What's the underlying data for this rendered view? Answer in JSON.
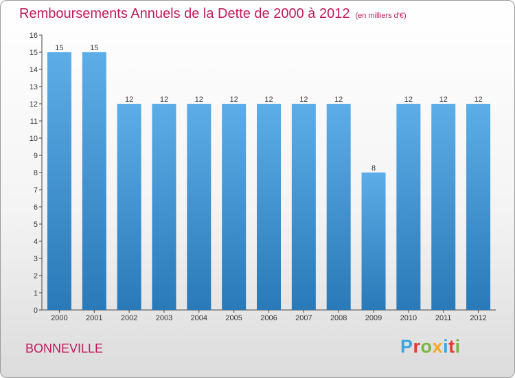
{
  "header": {
    "title": "Remboursements Annuels de la Dette de 2000 à 2012",
    "unit": "(en milliers d'€)"
  },
  "footer": {
    "city": "BONNEVILLE",
    "logo_letters": [
      "P",
      "r",
      "o",
      "x",
      "i",
      "t",
      "i"
    ]
  },
  "colors": {
    "title": "#c2185b",
    "bar_top": "#5dade8",
    "bar_bottom": "#2a79b8"
  },
  "chart_data": {
    "type": "bar",
    "title": "Remboursements Annuels de la Dette de 2000 à 2012",
    "categories": [
      "2000",
      "2001",
      "2002",
      "2003",
      "2004",
      "2005",
      "2006",
      "2007",
      "2008",
      "2009",
      "2010",
      "2011",
      "2012"
    ],
    "values": [
      15,
      15,
      12,
      12,
      12,
      12,
      12,
      12,
      12,
      8,
      12,
      12,
      12
    ],
    "ylim": [
      0,
      16
    ],
    "yticks": [
      0,
      1,
      2,
      3,
      4,
      5,
      6,
      7,
      8,
      9,
      10,
      11,
      12,
      13,
      14,
      15,
      16
    ],
    "grid": false,
    "data_labels": true
  }
}
